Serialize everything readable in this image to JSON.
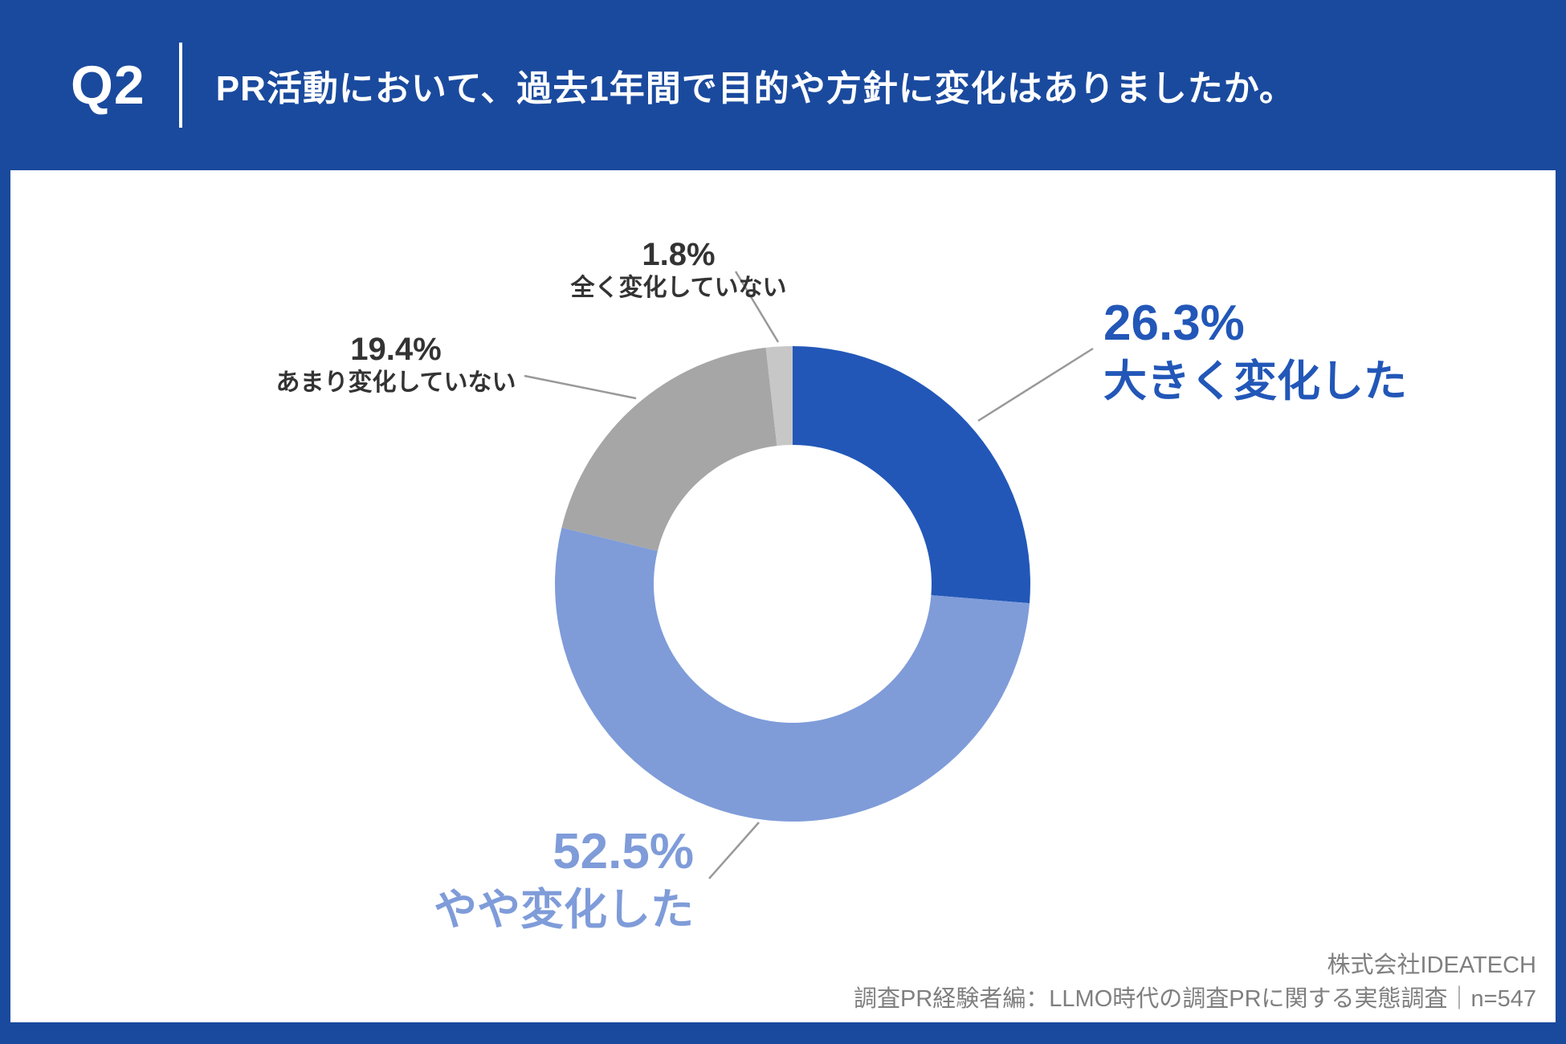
{
  "header": {
    "q_label": "Q2",
    "title": "PR活動において、過去1年間で目的や方針に変化はありましたか。"
  },
  "chart_data": {
    "type": "pie",
    "subtype": "donut",
    "start_angle_deg": 0,
    "direction": "clockwise",
    "inner_radius_ratio": 0.58,
    "unit": "%",
    "segments": [
      {
        "key": "major-change",
        "label": "大きく変化した",
        "value": 26.3,
        "display": "26.3%",
        "color": "#2257B8"
      },
      {
        "key": "some-change",
        "label": "やや変化した",
        "value": 52.5,
        "display": "52.5%",
        "color": "#7F9CD9"
      },
      {
        "key": "little-change",
        "label": "あまり変化していない",
        "value": 19.4,
        "display": "19.4%",
        "color": "#A6A6A6"
      },
      {
        "key": "no-change",
        "label": "全く変化していない",
        "value": 1.8,
        "display": "1.8%",
        "color": "#C7C7C7"
      }
    ]
  },
  "footer": {
    "company": "株式会社IDEATECH",
    "source": "調査PR経験者編：LLMO時代の調査PRに関する実態調査｜n=547"
  },
  "colors": {
    "page_background": "#1A4A9E",
    "card_background": "#FFFFFF",
    "dark_label_text": "#333333",
    "leader_line": "#999999",
    "footer_text": "#7F7F7F"
  }
}
